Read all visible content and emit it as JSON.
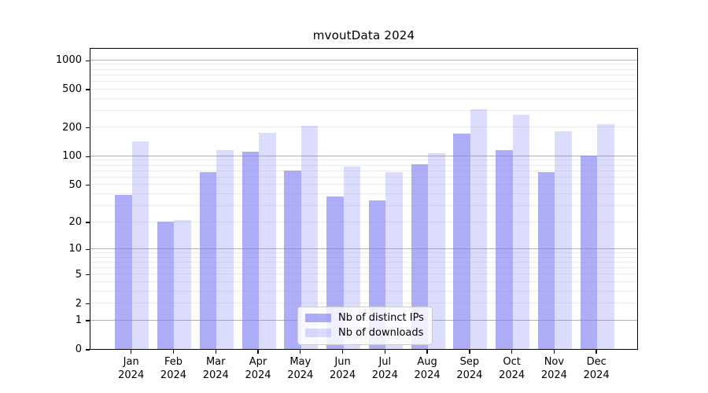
{
  "chart_data": {
    "type": "bar",
    "title": "mvoutData 2024",
    "categories": [
      "Jan",
      "Feb",
      "Mar",
      "Apr",
      "May",
      "Jun",
      "Jul",
      "Aug",
      "Sep",
      "Oct",
      "Nov",
      "Dec"
    ],
    "category_year": "2024",
    "series": [
      {
        "name": "Nb of distinct IPs",
        "color": "rgba(130,130,245,0.66)",
        "values": [
          39,
          20,
          68,
          110,
          70,
          37,
          34,
          82,
          170,
          116,
          68,
          100
        ]
      },
      {
        "name": "Nb of downloads",
        "color": "rgba(130,130,245,0.28)",
        "values": [
          142,
          21,
          115,
          175,
          205,
          77,
          67,
          107,
          310,
          268,
          180,
          215
        ]
      }
    ],
    "yscale": "log1p",
    "ylim": [
      0,
      1360
    ],
    "yticks": [
      0,
      1,
      2,
      5,
      10,
      20,
      50,
      100,
      200,
      500,
      1000
    ],
    "grid": {
      "major": [
        1,
        10,
        100,
        1000
      ],
      "minor": [
        2,
        3,
        4,
        5,
        6,
        7,
        8,
        9,
        20,
        30,
        40,
        50,
        60,
        70,
        80,
        90,
        200,
        300,
        400,
        500,
        600,
        700,
        800,
        900
      ],
      "major_color": "#b0b0b0",
      "minor_color": "#ececec"
    },
    "legend_position": "lower center",
    "grid_on": true
  }
}
